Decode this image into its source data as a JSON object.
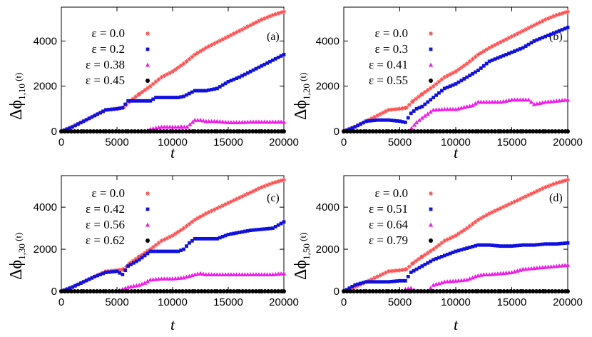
{
  "colors": {
    "eps0": "#ff4d4d",
    "eps1": "#1010e0",
    "eps2": "#ee1ee8",
    "eps3": "#000000"
  },
  "chart_data": [
    {
      "type": "scatter",
      "panel_label": "(a)",
      "ylabel": "Δϕ",
      "ylabel_sub": "1,10",
      "ylabel_arg": " (t)",
      "xlabel": "t",
      "xlim": [
        0,
        20000
      ],
      "ylim": [
        0,
        5500
      ],
      "xticks": [
        0,
        5000,
        10000,
        15000,
        20000
      ],
      "yticks": [
        0,
        2000,
        4000
      ],
      "series": [
        {
          "name": "ε = 0.0",
          "marker": "star",
          "color": "#ff4d4d",
          "x": [
            0,
            1000,
            2000,
            3000,
            4000,
            5000,
            5600,
            6200,
            7000,
            8000,
            9000,
            10000,
            11000,
            11500,
            12000,
            13000,
            14000,
            15000,
            16000,
            17000,
            18000,
            19000,
            20000
          ],
          "y": [
            0,
            200,
            450,
            700,
            950,
            1000,
            1050,
            1350,
            1650,
            2000,
            2400,
            2650,
            3000,
            3200,
            3400,
            3700,
            3950,
            4200,
            4450,
            4700,
            4950,
            5150,
            5300
          ]
        },
        {
          "name": "ε = 0.2",
          "marker": "square",
          "color": "#1010e0",
          "x": [
            0,
            1000,
            2000,
            3000,
            4000,
            5000,
            5500,
            6000,
            7000,
            8000,
            8500,
            9000,
            10000,
            10500,
            11000,
            12000,
            13000,
            14000,
            15000,
            16000,
            17000,
            18000,
            19000,
            20000
          ],
          "y": [
            0,
            200,
            450,
            700,
            950,
            1000,
            1050,
            1350,
            1350,
            1350,
            1500,
            1500,
            1500,
            1500,
            1550,
            1800,
            1800,
            1900,
            2200,
            2400,
            2650,
            2900,
            3150,
            3400
          ]
        },
        {
          "name": "ε = 0.38",
          "marker": "triangle",
          "color": "#ee1ee8",
          "x": [
            7500,
            8000,
            9000,
            10000,
            10800,
            11300,
            12000,
            12500,
            13000,
            14000,
            15000,
            16000,
            17000,
            18000,
            19000,
            20000
          ],
          "y": [
            0,
            100,
            200,
            200,
            200,
            200,
            500,
            500,
            450,
            450,
            400,
            400,
            420,
            420,
            420,
            420
          ]
        },
        {
          "name": "ε = 0.45",
          "marker": "circle",
          "color": "#000000",
          "x": [
            0,
            2000,
            4000,
            6000,
            8000,
            10000,
            12000,
            14000,
            16000,
            18000,
            20000
          ],
          "y": [
            0,
            0,
            0,
            0,
            0,
            0,
            0,
            0,
            0,
            0,
            0
          ]
        }
      ]
    },
    {
      "type": "scatter",
      "panel_label": "(b)",
      "ylabel": "Δϕ",
      "ylabel_sub": "1,20",
      "ylabel_arg": " (t)",
      "xlabel": "t",
      "xlim": [
        0,
        20000
      ],
      "ylim": [
        0,
        5500
      ],
      "xticks": [
        0,
        5000,
        10000,
        15000,
        20000
      ],
      "yticks": [
        0,
        2000,
        4000
      ],
      "series": [
        {
          "name": "ε = 0.0",
          "marker": "star",
          "color": "#ff4d4d",
          "x": [
            0,
            1000,
            2000,
            3000,
            4000,
            5000,
            5600,
            6200,
            7000,
            8000,
            9000,
            10000,
            11000,
            11500,
            12000,
            13000,
            14000,
            15000,
            16000,
            17000,
            18000,
            19000,
            20000
          ],
          "y": [
            0,
            200,
            450,
            700,
            950,
            1000,
            1050,
            1350,
            1650,
            2000,
            2400,
            2650,
            3000,
            3200,
            3400,
            3700,
            3950,
            4200,
            4450,
            4700,
            4950,
            5150,
            5300
          ]
        },
        {
          "name": "ε = 0.3",
          "marker": "square",
          "color": "#1010e0",
          "x": [
            0,
            1000,
            2000,
            3000,
            4000,
            5000,
            5500,
            6000,
            6500,
            7000,
            7500,
            8000,
            9000,
            10000,
            11000,
            12000,
            12500,
            13000,
            14000,
            15000,
            16000,
            17000,
            18000,
            19000,
            20000
          ],
          "y": [
            0,
            200,
            450,
            500,
            500,
            450,
            400,
            800,
            1000,
            1100,
            1300,
            1500,
            1900,
            2100,
            2400,
            2700,
            2900,
            3100,
            3300,
            3500,
            3700,
            4000,
            4200,
            4400,
            4600
          ]
        },
        {
          "name": "ε = 0.41",
          "marker": "triangle",
          "color": "#ee1ee8",
          "x": [
            5800,
            6500,
            7000,
            8000,
            9000,
            10000,
            11000,
            11500,
            12000,
            13000,
            14000,
            15000,
            16000,
            16500,
            17000,
            18000,
            19000,
            20000
          ],
          "y": [
            0,
            400,
            600,
            950,
            980,
            980,
            1100,
            1150,
            1300,
            1300,
            1300,
            1400,
            1400,
            1400,
            1200,
            1300,
            1350,
            1400
          ]
        },
        {
          "name": "ε = 0.55",
          "marker": "circle",
          "color": "#000000",
          "x": [
            0,
            2000,
            4000,
            6000,
            8000,
            10000,
            12000,
            14000,
            16000,
            18000,
            20000
          ],
          "y": [
            0,
            0,
            0,
            0,
            0,
            0,
            0,
            0,
            0,
            0,
            0
          ]
        }
      ]
    },
    {
      "type": "scatter",
      "panel_label": "(c)",
      "ylabel": "Δϕ",
      "ylabel_sub": "1,30",
      "ylabel_arg": " (t)",
      "xlabel": "t",
      "xlim": [
        0,
        20000
      ],
      "ylim": [
        0,
        5500
      ],
      "xticks": [
        0,
        5000,
        10000,
        15000,
        20000
      ],
      "yticks": [
        0,
        2000,
        4000
      ],
      "series": [
        {
          "name": "ε = 0.0",
          "marker": "star",
          "color": "#ff4d4d",
          "x": [
            0,
            1000,
            2000,
            3000,
            4000,
            5000,
            5600,
            6200,
            7000,
            8000,
            9000,
            10000,
            11000,
            11500,
            12000,
            13000,
            14000,
            15000,
            16000,
            17000,
            18000,
            19000,
            20000
          ],
          "y": [
            0,
            200,
            450,
            700,
            950,
            1000,
            1050,
            1350,
            1650,
            2000,
            2400,
            2650,
            3000,
            3200,
            3400,
            3700,
            3950,
            4200,
            4450,
            4700,
            4950,
            5150,
            5300
          ]
        },
        {
          "name": "ε = 0.42",
          "marker": "square",
          "color": "#1010e0",
          "x": [
            0,
            1000,
            2000,
            3000,
            4000,
            5000,
            5500,
            6000,
            7000,
            7500,
            8000,
            9000,
            10000,
            10500,
            11000,
            11500,
            12000,
            13000,
            14000,
            15000,
            16000,
            17000,
            18000,
            19000,
            20000
          ],
          "y": [
            0,
            200,
            450,
            700,
            900,
            950,
            800,
            1200,
            1500,
            1700,
            1900,
            1900,
            1900,
            1900,
            2000,
            2300,
            2500,
            2500,
            2500,
            2700,
            2800,
            2900,
            2950,
            3000,
            3300
          ]
        },
        {
          "name": "ε = 0.56",
          "marker": "triangle",
          "color": "#ee1ee8",
          "x": [
            5000,
            6000,
            7000,
            7500,
            8000,
            9000,
            10000,
            11000,
            12000,
            12500,
            13000,
            14000,
            15000,
            16000,
            17000,
            18000,
            19000,
            20000
          ],
          "y": [
            0,
            200,
            300,
            400,
            550,
            600,
            600,
            650,
            800,
            850,
            800,
            800,
            800,
            800,
            800,
            800,
            800,
            850
          ]
        },
        {
          "name": "ε = 0.62",
          "marker": "circle",
          "color": "#000000",
          "x": [
            0,
            2000,
            4000,
            6000,
            8000,
            10000,
            12000,
            14000,
            16000,
            18000,
            20000
          ],
          "y": [
            0,
            0,
            0,
            0,
            0,
            0,
            0,
            0,
            0,
            0,
            0
          ]
        }
      ]
    },
    {
      "type": "scatter",
      "panel_label": "(d)",
      "ylabel": "Δϕ",
      "ylabel_sub": "1,50",
      "ylabel_arg": " (t)",
      "xlabel": "t",
      "xlim": [
        0,
        20000
      ],
      "ylim": [
        0,
        5500
      ],
      "xticks": [
        0,
        5000,
        10000,
        15000,
        20000
      ],
      "yticks": [
        0,
        2000,
        4000
      ],
      "series": [
        {
          "name": "ε = 0.0",
          "marker": "star",
          "color": "#ff4d4d",
          "x": [
            0,
            1000,
            2000,
            3000,
            4000,
            5000,
            5600,
            6200,
            7000,
            8000,
            9000,
            10000,
            11000,
            11500,
            12000,
            13000,
            14000,
            15000,
            16000,
            17000,
            18000,
            19000,
            20000
          ],
          "y": [
            0,
            200,
            450,
            700,
            950,
            1000,
            1050,
            1350,
            1650,
            2000,
            2400,
            2650,
            3000,
            3200,
            3400,
            3700,
            3950,
            4200,
            4450,
            4700,
            4950,
            5150,
            5300
          ]
        },
        {
          "name": "ε = 0.51",
          "marker": "square",
          "color": "#1010e0",
          "x": [
            0,
            1000,
            2000,
            3000,
            4000,
            5000,
            5500,
            6000,
            7000,
            8000,
            9000,
            10000,
            11000,
            12000,
            12500,
            13000,
            14000,
            15000,
            16000,
            17000,
            18000,
            19000,
            20000
          ],
          "y": [
            0,
            300,
            450,
            450,
            450,
            500,
            500,
            900,
            1200,
            1500,
            1700,
            1900,
            2050,
            2200,
            2200,
            2200,
            2150,
            2150,
            2200,
            2200,
            2250,
            2250,
            2300
          ]
        },
        {
          "name": "ε = 0.64",
          "marker": "triangle",
          "color": "#ee1ee8",
          "x": [
            5500,
            6000,
            6500,
            7500,
            8000,
            9000,
            10000,
            11000,
            12000,
            12500,
            13000,
            14000,
            15000,
            16000,
            17000,
            18000,
            19000,
            20000
          ],
          "y": [
            100,
            150,
            0,
            0,
            300,
            450,
            500,
            550,
            750,
            800,
            800,
            850,
            900,
            1050,
            1100,
            1150,
            1200,
            1250
          ]
        },
        {
          "name": "ε = 0.79",
          "marker": "circle",
          "color": "#000000",
          "x": [
            0,
            2000,
            4000,
            6000,
            8000,
            10000,
            12000,
            14000,
            16000,
            18000,
            20000
          ],
          "y": [
            0,
            0,
            0,
            0,
            0,
            0,
            0,
            0,
            0,
            0,
            0
          ]
        }
      ]
    }
  ]
}
